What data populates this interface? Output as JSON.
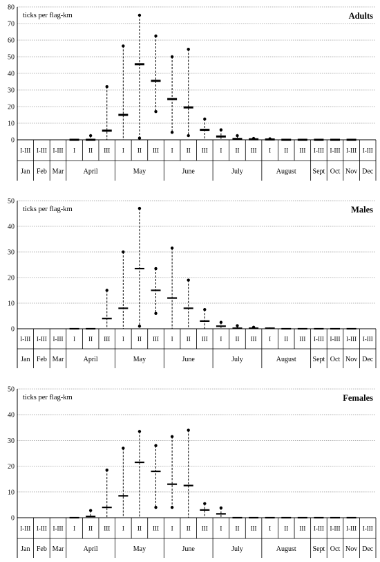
{
  "periods": [
    {
      "key": "jan",
      "label": "I-III"
    },
    {
      "key": "feb",
      "label": "I-III"
    },
    {
      "key": "mar",
      "label": "I-III"
    },
    {
      "key": "apr1",
      "label": "I"
    },
    {
      "key": "apr2",
      "label": "II"
    },
    {
      "key": "apr3",
      "label": "III"
    },
    {
      "key": "may1",
      "label": "I"
    },
    {
      "key": "may2",
      "label": "II"
    },
    {
      "key": "may3",
      "label": "III"
    },
    {
      "key": "jun1",
      "label": "I"
    },
    {
      "key": "jun2",
      "label": "II"
    },
    {
      "key": "jun3",
      "label": "III"
    },
    {
      "key": "jul1",
      "label": "I"
    },
    {
      "key": "jul2",
      "label": "II"
    },
    {
      "key": "jul3",
      "label": "III"
    },
    {
      "key": "aug1",
      "label": "I"
    },
    {
      "key": "aug2",
      "label": "II"
    },
    {
      "key": "aug3",
      "label": "III"
    },
    {
      "key": "sep",
      "label": "I-III"
    },
    {
      "key": "oct",
      "label": "I-III"
    },
    {
      "key": "nov",
      "label": "I-III"
    },
    {
      "key": "dec",
      "label": "I-III"
    }
  ],
  "months": [
    {
      "label": "Jan",
      "start": 0,
      "end": 1
    },
    {
      "label": "Feb",
      "start": 1,
      "end": 2
    },
    {
      "label": "Mar",
      "start": 2,
      "end": 3
    },
    {
      "label": "April",
      "start": 3,
      "end": 6
    },
    {
      "label": "May",
      "start": 6,
      "end": 9
    },
    {
      "label": "June",
      "start": 9,
      "end": 12
    },
    {
      "label": "July",
      "start": 12,
      "end": 15
    },
    {
      "label": "August",
      "start": 15,
      "end": 18
    },
    {
      "label": "Sept",
      "start": 18,
      "end": 19
    },
    {
      "label": "Oct",
      "start": 19,
      "end": 20
    },
    {
      "label": "Nov",
      "start": 20,
      "end": 21
    },
    {
      "label": "Dec",
      "start": 21,
      "end": 22
    }
  ],
  "chart_data": [
    {
      "type": "range-dot",
      "title": "Adults",
      "ylabel": "ticks per flag-km",
      "ylim": [
        0,
        80
      ],
      "ytick_step": 10,
      "grid": true,
      "series": [
        {
          "period": "apr1",
          "mean": 0,
          "min": 0,
          "max": 0
        },
        {
          "period": "apr2",
          "mean": 0,
          "min": 0,
          "max": 2.5
        },
        {
          "period": "apr3",
          "mean": 5.5,
          "min": 0,
          "max": 32
        },
        {
          "period": "may1",
          "mean": 15,
          "min": 0,
          "max": 56.5
        },
        {
          "period": "may2",
          "mean": 45.5,
          "min": 1,
          "max": 75
        },
        {
          "period": "may3",
          "mean": 35.5,
          "min": 17,
          "max": 62.5
        },
        {
          "period": "jun1",
          "mean": 24.5,
          "min": 4.5,
          "max": 50
        },
        {
          "period": "jun2",
          "mean": 19.5,
          "min": 2.5,
          "max": 54.5
        },
        {
          "period": "jun3",
          "mean": 6,
          "min": 0,
          "max": 12.5
        },
        {
          "period": "jul1",
          "mean": 2,
          "min": 0,
          "max": 6
        },
        {
          "period": "jul2",
          "mean": 0.5,
          "min": 0,
          "max": 2.5
        },
        {
          "period": "jul3",
          "mean": 0.3,
          "min": 0,
          "max": 0.8
        },
        {
          "period": "aug1",
          "mean": 0.2,
          "min": 0,
          "max": 0.6
        },
        {
          "period": "aug2",
          "mean": 0,
          "min": 0,
          "max": 0
        },
        {
          "period": "aug3",
          "mean": 0,
          "min": 0,
          "max": 0
        },
        {
          "period": "sep",
          "mean": 0,
          "min": 0,
          "max": 0
        },
        {
          "period": "oct",
          "mean": 0,
          "min": 0,
          "max": 0
        },
        {
          "period": "nov",
          "mean": 0,
          "min": 0,
          "max": 0
        }
      ]
    },
    {
      "type": "range-dot",
      "title": "Males",
      "ylabel": "ticks per flag-km",
      "ylim": [
        0,
        50
      ],
      "ytick_step": 10,
      "grid": true,
      "series": [
        {
          "period": "apr1",
          "mean": 0,
          "min": 0,
          "max": 0
        },
        {
          "period": "apr2",
          "mean": 0,
          "min": 0,
          "max": 0
        },
        {
          "period": "apr3",
          "mean": 4,
          "min": 0,
          "max": 15
        },
        {
          "period": "may1",
          "mean": 8,
          "min": 0,
          "max": 30
        },
        {
          "period": "may2",
          "mean": 23.5,
          "min": 1,
          "max": 47
        },
        {
          "period": "may3",
          "mean": 15,
          "min": 6,
          "max": 23.5
        },
        {
          "period": "jun1",
          "mean": 12,
          "min": 0,
          "max": 31.5
        },
        {
          "period": "jun2",
          "mean": 8,
          "min": 0,
          "max": 19
        },
        {
          "period": "jun3",
          "mean": 3,
          "min": 0,
          "max": 7.5
        },
        {
          "period": "jul1",
          "mean": 1,
          "min": 0,
          "max": 2.5
        },
        {
          "period": "jul2",
          "mean": 0.2,
          "min": 0,
          "max": 1.2
        },
        {
          "period": "jul3",
          "mean": 0.2,
          "min": 0,
          "max": 0.6
        },
        {
          "period": "aug1",
          "mean": 0.2,
          "min": 0,
          "max": 0.5
        },
        {
          "period": "aug2",
          "mean": 0,
          "min": 0,
          "max": 0
        },
        {
          "period": "aug3",
          "mean": 0,
          "min": 0,
          "max": 0
        },
        {
          "period": "sep",
          "mean": 0,
          "min": 0,
          "max": 0
        },
        {
          "period": "oct",
          "mean": 0,
          "min": 0,
          "max": 0
        },
        {
          "period": "nov",
          "mean": 0,
          "min": 0,
          "max": 0
        }
      ]
    },
    {
      "type": "range-dot",
      "title": "Females",
      "ylabel": "ticks per flag-km",
      "ylim": [
        0,
        50
      ],
      "ytick_step": 10,
      "grid": true,
      "series": [
        {
          "period": "apr1",
          "mean": 0,
          "min": 0,
          "max": 0
        },
        {
          "period": "apr2",
          "mean": 0.5,
          "min": 0,
          "max": 2.8
        },
        {
          "period": "apr3",
          "mean": 4,
          "min": 0,
          "max": 18.5
        },
        {
          "period": "may1",
          "mean": 8.5,
          "min": 0.5,
          "max": 27
        },
        {
          "period": "may2",
          "mean": 21.5,
          "min": 0,
          "max": 33.5
        },
        {
          "period": "may3",
          "mean": 18,
          "min": 4,
          "max": 28
        },
        {
          "period": "jun1",
          "mean": 13,
          "min": 4,
          "max": 31.5
        },
        {
          "period": "jun2",
          "mean": 12.5,
          "min": 0,
          "max": 34
        },
        {
          "period": "jun3",
          "mean": 3,
          "min": 0,
          "max": 5.5
        },
        {
          "period": "jul1",
          "mean": 1.5,
          "min": 0,
          "max": 3.8
        },
        {
          "period": "jul2",
          "mean": 0,
          "min": 0,
          "max": 0
        },
        {
          "period": "jul3",
          "mean": 0,
          "min": 0,
          "max": 0
        },
        {
          "period": "aug1",
          "mean": 0,
          "min": 0,
          "max": 0
        },
        {
          "period": "aug2",
          "mean": 0,
          "min": 0,
          "max": 0
        },
        {
          "period": "aug3",
          "mean": 0,
          "min": 0,
          "max": 0
        },
        {
          "period": "sep",
          "mean": 0,
          "min": 0,
          "max": 0
        },
        {
          "period": "oct",
          "mean": 0,
          "min": 0,
          "max": 0
        },
        {
          "period": "nov",
          "mean": 0,
          "min": 0,
          "max": 0
        }
      ]
    }
  ]
}
